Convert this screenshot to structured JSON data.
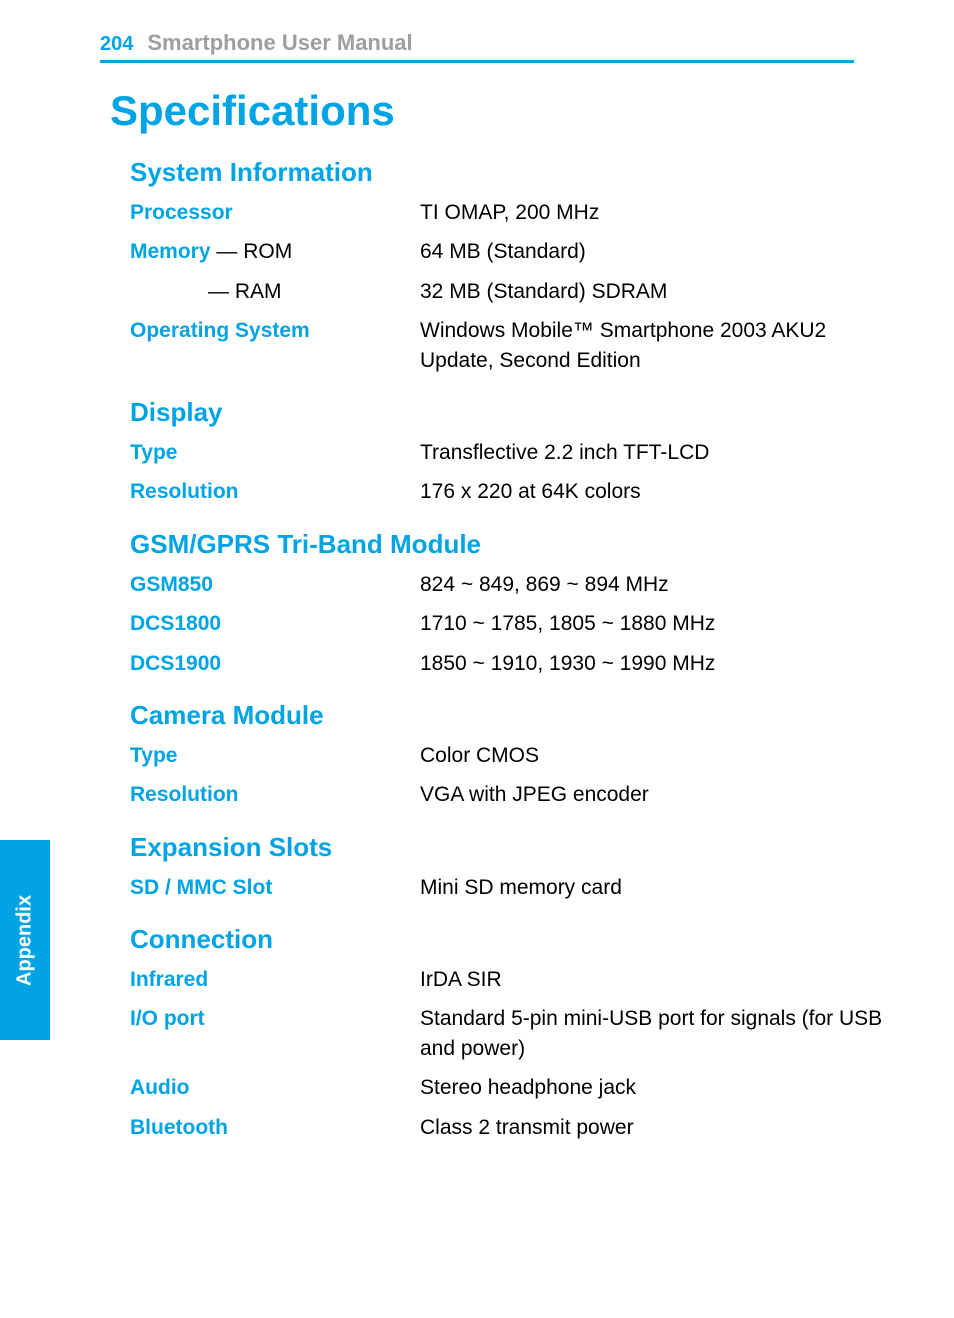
{
  "colors": {
    "accent": "#00a4e4",
    "muted": "#9e9e9e",
    "text": "#000000",
    "background": "#ffffff"
  },
  "header": {
    "page_number": "204",
    "title": "Smartphone User Manual"
  },
  "sidebar": {
    "label": "Appendix"
  },
  "page": {
    "title": "Specifications"
  },
  "sections": {
    "system_info": {
      "heading": "System Information",
      "processor": {
        "label": "Processor",
        "value": "TI OMAP, 200 MHz"
      },
      "memory": {
        "label": "Memory",
        "rom_suffix": " — ROM",
        "rom_value": "64 MB (Standard)",
        "ram_suffix": "— RAM",
        "ram_value": "32 MB (Standard) SDRAM"
      },
      "os": {
        "label": "Operating System",
        "value": "Windows Mobile™ Smartphone 2003 AKU2 Update, Second Edition"
      }
    },
    "display": {
      "heading": "Display",
      "type": {
        "label": "Type",
        "value": "Transflective 2.2 inch TFT-LCD"
      },
      "resolution": {
        "label": "Resolution",
        "value": "176 x 220 at  64K colors"
      }
    },
    "gsm": {
      "heading": "GSM/GPRS Tri-Band Module",
      "gsm850": {
        "label": "GSM850",
        "value": "824 ~ 849, 869 ~ 894 MHz"
      },
      "dcs1800": {
        "label": "DCS1800",
        "value": "1710 ~ 1785, 1805 ~ 1880 MHz"
      },
      "dcs1900": {
        "label": "DCS1900",
        "value": "1850 ~ 1910, 1930 ~ 1990 MHz"
      }
    },
    "camera": {
      "heading": "Camera Module",
      "type": {
        "label": "Type",
        "value": "Color CMOS"
      },
      "resolution": {
        "label": "Resolution",
        "value": "VGA with JPEG encoder"
      }
    },
    "expansion": {
      "heading": "Expansion Slots",
      "sd": {
        "label": "SD / MMC Slot",
        "value": "Mini SD memory card"
      }
    },
    "connection": {
      "heading": "Connection",
      "infrared": {
        "label": "Infrared",
        "value": "IrDA SIR"
      },
      "io": {
        "label": "I/O port",
        "value": "Standard 5-pin mini-USB port for signals (for USB and power)"
      },
      "audio": {
        "label": "Audio",
        "value": "Stereo headphone jack"
      },
      "bluetooth": {
        "label": "Bluetooth",
        "value": "Class 2 transmit power"
      }
    }
  }
}
